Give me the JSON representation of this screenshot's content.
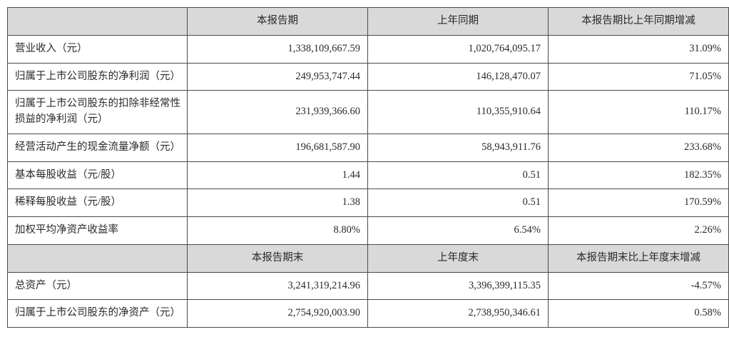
{
  "header1": {
    "blank": "",
    "c1": "本报告期",
    "c2": "上年同期",
    "c3": "本报告期比上年同期增减"
  },
  "rows1": [
    {
      "label": "营业收入（元）",
      "v1": "1,338,109,667.59",
      "v2": "1,020,764,095.17",
      "v3": "31.09%"
    },
    {
      "label": "归属于上市公司股东的净利润（元）",
      "v1": "249,953,747.44",
      "v2": "146,128,470.07",
      "v3": "71.05%"
    },
    {
      "label": "归属于上市公司股东的扣除非经常性损益的净利润（元）",
      "v1": "231,939,366.60",
      "v2": "110,355,910.64",
      "v3": "110.17%"
    },
    {
      "label": "经营活动产生的现金流量净额（元）",
      "v1": "196,681,587.90",
      "v2": "58,943,911.76",
      "v3": "233.68%"
    },
    {
      "label": "基本每股收益（元/股）",
      "v1": "1.44",
      "v2": "0.51",
      "v3": "182.35%"
    },
    {
      "label": "稀释每股收益（元/股）",
      "v1": "1.38",
      "v2": "0.51",
      "v3": "170.59%"
    },
    {
      "label": "加权平均净资产收益率",
      "v1": "8.80%",
      "v2": "6.54%",
      "v3": "2.26%"
    }
  ],
  "header2": {
    "blank": "",
    "c1": "本报告期末",
    "c2": "上年度末",
    "c3": "本报告期末比上年度末增减"
  },
  "rows2": [
    {
      "label": "总资产（元）",
      "v1": "3,241,319,214.96",
      "v2": "3,396,399,115.35",
      "v3": "-4.57%"
    },
    {
      "label": "归属于上市公司股东的净资产（元）",
      "v1": "2,754,920,003.90",
      "v2": "2,738,950,346.61",
      "v3": "0.58%"
    }
  ]
}
